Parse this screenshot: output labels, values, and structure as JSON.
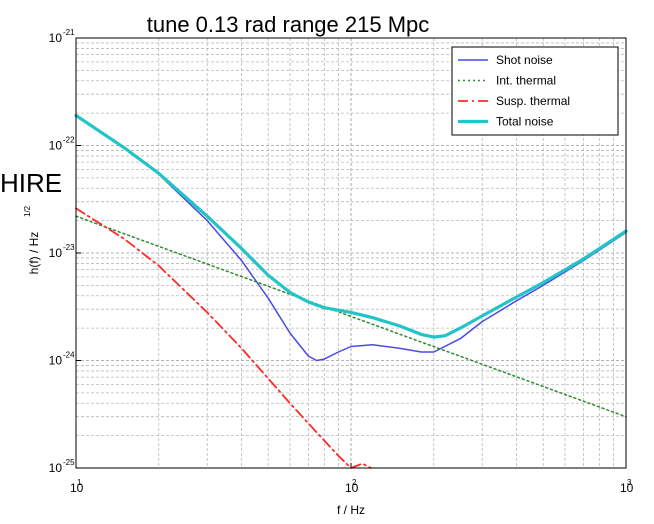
{
  "side_text": "HIRE",
  "chart_data": {
    "type": "line",
    "title": "tune 0.13 rad range 215 Mpc",
    "xlabel": "f / Hz",
    "ylabel": "h(f) / Hz",
    "ylabel_exponent": "1/2",
    "x_scale": "log",
    "y_scale": "log",
    "xlim": [
      10,
      1000
    ],
    "ylim": [
      1e-25,
      1e-21
    ],
    "x_ticks": [
      {
        "value": 10,
        "base": "10",
        "exp": "1"
      },
      {
        "value": 100,
        "base": "10",
        "exp": "2"
      },
      {
        "value": 1000,
        "base": "10",
        "exp": "3"
      }
    ],
    "y_ticks": [
      {
        "value": 1e-25,
        "base": "10",
        "exp": "-25"
      },
      {
        "value": 1e-24,
        "base": "10",
        "exp": "-24"
      },
      {
        "value": 1e-23,
        "base": "10",
        "exp": "-23"
      },
      {
        "value": 1e-22,
        "base": "10",
        "exp": "-22"
      },
      {
        "value": 1e-21,
        "base": "10",
        "exp": "-21"
      }
    ],
    "grid": true,
    "legend_position": "top-right",
    "series": [
      {
        "name": "Shot noise",
        "color": "#4a4ae6",
        "style": "solid",
        "width": 1.5,
        "x": [
          10,
          15,
          20,
          30,
          40,
          50,
          60,
          70,
          75,
          80,
          90,
          100,
          120,
          150,
          180,
          200,
          250,
          300,
          400,
          500,
          700,
          1000
        ],
        "y": [
          1.9e-22,
          9.5e-23,
          5.4e-23,
          2e-23,
          8.5e-24,
          3.8e-24,
          1.8e-24,
          1.1e-24,
          1e-24,
          1.03e-24,
          1.2e-24,
          1.35e-24,
          1.4e-24,
          1.3e-24,
          1.2e-24,
          1.2e-24,
          1.6e-24,
          2.3e-24,
          3.6e-24,
          5e-24,
          8.5e-24,
          1.55e-23
        ]
      },
      {
        "name": "Int. thermal",
        "color": "#2e8b2e",
        "style": "dotted",
        "width": 1.5,
        "x": [
          10,
          1000
        ],
        "y": [
          2.2e-23,
          3e-25
        ]
      },
      {
        "name": "Susp. thermal",
        "color": "#ff2a2a",
        "style": "dashdot",
        "width": 1.8,
        "x": [
          10,
          15,
          20,
          30,
          40,
          50,
          60,
          70,
          80,
          90,
          100,
          110,
          118
        ],
        "y": [
          2.6e-23,
          1.35e-23,
          7.6e-24,
          2.8e-24,
          1.3e-24,
          6.8e-25,
          4e-25,
          2.6e-25,
          1.8e-25,
          1.3e-25,
          1e-25,
          1.1e-25,
          1e-25
        ]
      },
      {
        "name": "Total noise",
        "color": "#22c4c8",
        "style": "solid",
        "width": 3.2,
        "x": [
          10,
          15,
          20,
          30,
          40,
          50,
          60,
          70,
          80,
          100,
          120,
          150,
          180,
          200,
          220,
          250,
          300,
          400,
          500,
          700,
          1000
        ],
        "y": [
          1.9e-22,
          9.5e-23,
          5.5e-23,
          2.2e-23,
          1.1e-23,
          6.2e-24,
          4.3e-24,
          3.5e-24,
          3.1e-24,
          2.8e-24,
          2.5e-24,
          2.1e-24,
          1.75e-24,
          1.65e-24,
          1.7e-24,
          2e-24,
          2.6e-24,
          3.9e-24,
          5.3e-24,
          8.8e-24,
          1.6e-23
        ]
      }
    ]
  }
}
